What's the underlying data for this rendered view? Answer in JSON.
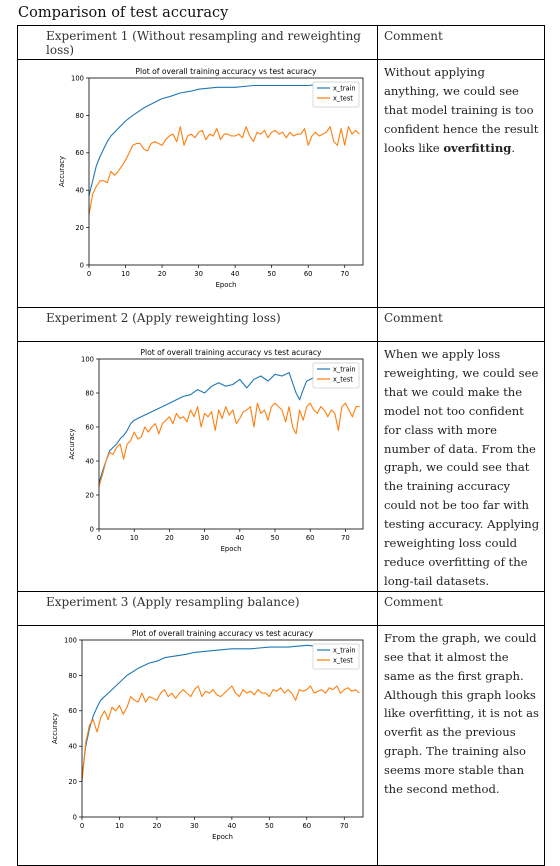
{
  "document": {
    "title": "Comparison of test accuracy",
    "comment_header": "Comment"
  },
  "colors": {
    "train": "#1f77b4",
    "test": "#ff7f0e"
  },
  "experiments": [
    {
      "header": "Experiment 1 (Without resampling and reweighting loss)",
      "comment_parts": [
        "Without applying anything, we could see that model training is too confident hence the result looks like ",
        "overfitting",
        "."
      ]
    },
    {
      "header": "Experiment 2 (Apply reweighting loss)",
      "comment_parts": [
        "When we apply loss reweighting, we could see that we could make the model not too confident for class with more number of data. From the graph, we could see that the training accuracy could not be too far with testing accuracy. Applying reweighting loss could reduce overfitting of the long-tail datasets."
      ]
    },
    {
      "header": "Experiment 3 (Apply resampling balance)",
      "comment_parts": [
        "From the graph, we could see that it almost the same as the first graph. Although this graph looks like overfitting, it is not as overfit as the previous graph. The training also seems more stable than the second method."
      ]
    }
  ],
  "chart_data": [
    {
      "type": "line",
      "title": "Plot of overall training accuracy vs test acuracy",
      "xlabel": "Epoch",
      "ylabel": "Accuracy",
      "xlim": [
        0,
        75
      ],
      "ylim": [
        0,
        100
      ],
      "xticks": [
        0,
        10,
        20,
        30,
        40,
        50,
        60,
        70
      ],
      "yticks": [
        0,
        20,
        40,
        60,
        80,
        100
      ],
      "legend": "top-right",
      "series": [
        {
          "name": "x_train",
          "x": [
            0,
            1,
            2,
            3,
            4,
            5,
            6,
            8,
            10,
            12,
            15,
            18,
            20,
            22,
            25,
            28,
            30,
            35,
            40,
            45,
            50,
            55,
            60,
            65,
            70,
            72,
            74
          ],
          "y": [
            37,
            45,
            53,
            58,
            62,
            66,
            69,
            73,
            77,
            80,
            84,
            87,
            89,
            90,
            92,
            93,
            94,
            95,
            95,
            96,
            96,
            96,
            96,
            97,
            97,
            96,
            97
          ]
        },
        {
          "name": "x_test",
          "x": [
            0,
            1,
            2,
            3,
            4,
            5,
            6,
            7,
            8,
            9,
            10,
            12,
            13,
            14,
            15,
            16,
            17,
            18,
            19,
            20,
            21,
            22,
            23,
            24,
            25,
            26,
            27,
            28,
            29,
            30,
            31,
            32,
            33,
            34,
            35,
            36,
            37,
            38,
            39,
            40,
            41,
            42,
            43,
            44,
            45,
            46,
            47,
            48,
            49,
            50,
            51,
            52,
            53,
            54,
            55,
            56,
            57,
            58,
            59,
            60,
            61,
            62,
            63,
            64,
            65,
            66,
            67,
            68,
            69,
            70,
            71,
            72,
            73,
            74
          ],
          "y": [
            27,
            38,
            42,
            45,
            45,
            44,
            50,
            48,
            50,
            53,
            56,
            64,
            65,
            65,
            62,
            61,
            65,
            66,
            65,
            64,
            67,
            69,
            70,
            66,
            74,
            64,
            69,
            70,
            68,
            71,
            72,
            67,
            70,
            69,
            73,
            67,
            70,
            70,
            69,
            69,
            70,
            68,
            74,
            69,
            66,
            71,
            70,
            72,
            68,
            71,
            72,
            70,
            71,
            68,
            71,
            69,
            70,
            70,
            73,
            64,
            69,
            71,
            69,
            70,
            71,
            74,
            66,
            64,
            73,
            64,
            74,
            70,
            72,
            70
          ]
        }
      ]
    },
    {
      "type": "line",
      "title": "Plot of overall training accuracy vs test acuracy",
      "xlabel": "Epoch",
      "ylabel": "Accuracy",
      "xlim": [
        0,
        75
      ],
      "ylim": [
        0,
        100
      ],
      "xticks": [
        0,
        10,
        20,
        30,
        40,
        50,
        60,
        70
      ],
      "yticks": [
        0,
        20,
        40,
        60,
        80,
        100
      ],
      "legend": "top-right",
      "series": [
        {
          "name": "x_train",
          "x": [
            0,
            1,
            2,
            3,
            4,
            5,
            6,
            7,
            8,
            9,
            10,
            12,
            14,
            16,
            18,
            20,
            22,
            24,
            26,
            28,
            30,
            32,
            34,
            36,
            38,
            40,
            42,
            44,
            46,
            48,
            50,
            52,
            54,
            55,
            56,
            57,
            58,
            59,
            60,
            62,
            64,
            66,
            68,
            70,
            72,
            74
          ],
          "y": [
            27,
            34,
            40,
            46,
            48,
            50,
            53,
            55,
            58,
            62,
            64,
            66,
            68,
            70,
            72,
            74,
            76,
            78,
            79,
            82,
            80,
            84,
            86,
            84,
            85,
            88,
            83,
            88,
            90,
            87,
            91,
            90,
            92,
            86,
            80,
            76,
            82,
            87,
            88,
            90,
            88,
            90,
            86,
            90,
            89,
            89
          ]
        },
        {
          "name": "x_test",
          "x": [
            0,
            1,
            2,
            3,
            4,
            5,
            6,
            7,
            8,
            9,
            10,
            11,
            12,
            13,
            14,
            15,
            16,
            17,
            18,
            19,
            20,
            21,
            22,
            23,
            24,
            25,
            26,
            27,
            28,
            29,
            30,
            31,
            32,
            33,
            34,
            35,
            36,
            37,
            38,
            39,
            40,
            41,
            42,
            43,
            44,
            45,
            46,
            47,
            48,
            49,
            50,
            51,
            52,
            53,
            54,
            55,
            56,
            57,
            58,
            59,
            60,
            61,
            62,
            63,
            64,
            65,
            66,
            67,
            68,
            69,
            70,
            71,
            72,
            73,
            74
          ],
          "y": [
            25,
            32,
            40,
            45,
            44,
            48,
            50,
            41,
            50,
            52,
            57,
            53,
            54,
            60,
            57,
            60,
            62,
            56,
            62,
            64,
            66,
            62,
            68,
            65,
            66,
            63,
            70,
            66,
            72,
            60,
            68,
            66,
            69,
            58,
            70,
            65,
            72,
            67,
            70,
            62,
            65,
            69,
            70,
            72,
            60,
            74,
            68,
            70,
            64,
            72,
            74,
            72,
            70,
            63,
            72,
            60,
            56,
            70,
            64,
            72,
            74,
            70,
            68,
            72,
            70,
            66,
            70,
            68,
            58,
            72,
            74,
            70,
            66,
            72,
            72
          ]
        }
      ]
    },
    {
      "type": "line",
      "title": "Plot of overall training accuracy vs test acuracy",
      "xlabel": "Epoch",
      "ylabel": "Accuracy",
      "xlim": [
        0,
        75
      ],
      "ylim": [
        0,
        100
      ],
      "xticks": [
        0,
        10,
        20,
        30,
        40,
        50,
        60,
        70
      ],
      "yticks": [
        0,
        20,
        40,
        60,
        80,
        100
      ],
      "legend": "top-right",
      "series": [
        {
          "name": "x_train",
          "x": [
            0,
            1,
            2,
            3,
            4,
            5,
            6,
            8,
            10,
            12,
            15,
            18,
            20,
            22,
            25,
            28,
            30,
            35,
            40,
            45,
            50,
            55,
            60,
            65,
            70,
            72,
            74
          ],
          "y": [
            22,
            40,
            50,
            57,
            62,
            66,
            68,
            72,
            76,
            80,
            84,
            87,
            88,
            90,
            91,
            92,
            93,
            94,
            95,
            95,
            96,
            96,
            97,
            96,
            97,
            97,
            97
          ]
        },
        {
          "name": "x_test",
          "x": [
            0,
            1,
            2,
            3,
            4,
            5,
            6,
            7,
            8,
            9,
            10,
            11,
            12,
            13,
            14,
            15,
            16,
            17,
            18,
            19,
            20,
            21,
            22,
            23,
            24,
            25,
            26,
            27,
            28,
            29,
            30,
            31,
            32,
            33,
            34,
            35,
            36,
            37,
            38,
            39,
            40,
            41,
            42,
            43,
            44,
            45,
            46,
            47,
            48,
            49,
            50,
            51,
            52,
            53,
            54,
            55,
            56,
            57,
            58,
            59,
            60,
            61,
            62,
            63,
            64,
            65,
            66,
            67,
            68,
            69,
            70,
            71,
            72,
            73,
            74
          ],
          "y": [
            20,
            42,
            52,
            55,
            48,
            56,
            60,
            55,
            62,
            60,
            63,
            58,
            62,
            68,
            66,
            65,
            70,
            65,
            68,
            67,
            66,
            70,
            72,
            68,
            70,
            67,
            70,
            72,
            70,
            68,
            72,
            74,
            68,
            71,
            70,
            72,
            69,
            68,
            70,
            72,
            74,
            70,
            68,
            72,
            70,
            71,
            69,
            72,
            70,
            70,
            68,
            72,
            71,
            73,
            70,
            72,
            70,
            66,
            72,
            71,
            72,
            74,
            70,
            71,
            72,
            70,
            73,
            72,
            74,
            70,
            72,
            73,
            71,
            72,
            70
          ]
        }
      ]
    }
  ]
}
